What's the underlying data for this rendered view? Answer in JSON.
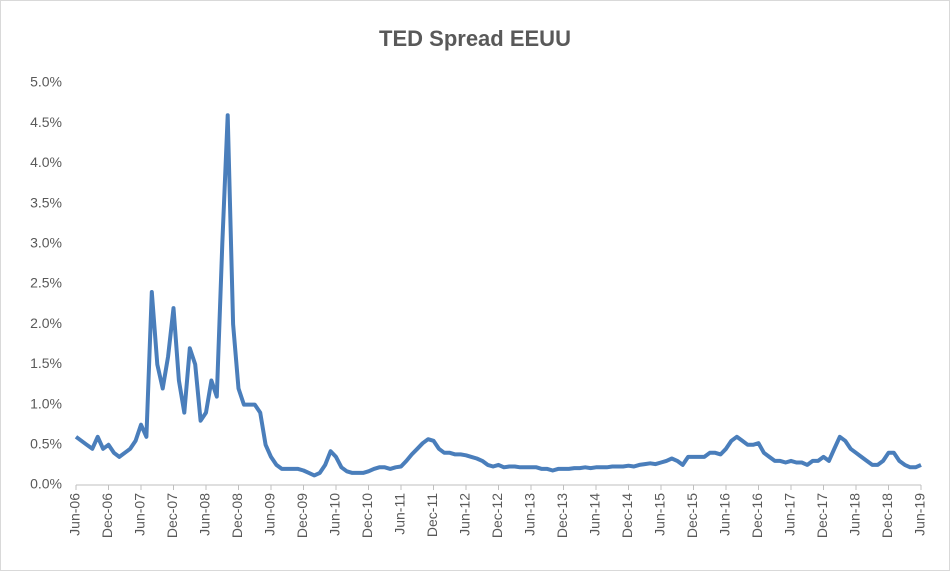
{
  "chart_data": {
    "type": "line",
    "title": "TED Spread EEUU",
    "x": [
      "Jun-06",
      "Jul-06",
      "Aug-06",
      "Sep-06",
      "Oct-06",
      "Nov-06",
      "Dec-06",
      "Jan-07",
      "Feb-07",
      "Mar-07",
      "Apr-07",
      "May-07",
      "Jun-07",
      "Jul-07",
      "Aug-07",
      "Sep-07",
      "Oct-07",
      "Nov-07",
      "Dec-07",
      "Jan-08",
      "Feb-08",
      "Mar-08",
      "Apr-08",
      "May-08",
      "Jun-08",
      "Jul-08",
      "Aug-08",
      "Sep-08",
      "Oct-08",
      "Nov-08",
      "Dec-08",
      "Jan-09",
      "Feb-09",
      "Mar-09",
      "Apr-09",
      "May-09",
      "Jun-09",
      "Jul-09",
      "Aug-09",
      "Sep-09",
      "Oct-09",
      "Nov-09",
      "Dec-09",
      "Jan-10",
      "Feb-10",
      "Mar-10",
      "Apr-10",
      "May-10",
      "Jun-10",
      "Jul-10",
      "Aug-10",
      "Sep-10",
      "Oct-10",
      "Nov-10",
      "Dec-10",
      "Jan-11",
      "Feb-11",
      "Mar-11",
      "Apr-11",
      "May-11",
      "Jun-11",
      "Jul-11",
      "Aug-11",
      "Sep-11",
      "Oct-11",
      "Nov-11",
      "Dec-11",
      "Jan-12",
      "Feb-12",
      "Mar-12",
      "Apr-12",
      "May-12",
      "Jun-12",
      "Jul-12",
      "Aug-12",
      "Sep-12",
      "Oct-12",
      "Nov-12",
      "Dec-12",
      "Jan-13",
      "Feb-13",
      "Mar-13",
      "Apr-13",
      "May-13",
      "Jun-13",
      "Jul-13",
      "Aug-13",
      "Sep-13",
      "Oct-13",
      "Nov-13",
      "Dec-13",
      "Jan-14",
      "Feb-14",
      "Mar-14",
      "Apr-14",
      "May-14",
      "Jun-14",
      "Jul-14",
      "Aug-14",
      "Sep-14",
      "Oct-14",
      "Nov-14",
      "Dec-14",
      "Jan-15",
      "Feb-15",
      "Mar-15",
      "Apr-15",
      "May-15",
      "Jun-15",
      "Jul-15",
      "Aug-15",
      "Sep-15",
      "Oct-15",
      "Nov-15",
      "Dec-15",
      "Jan-16",
      "Feb-16",
      "Mar-16",
      "Apr-16",
      "May-16",
      "Jun-16",
      "Jul-16",
      "Aug-16",
      "Sep-16",
      "Oct-16",
      "Nov-16",
      "Dec-16",
      "Jan-17",
      "Feb-17",
      "Mar-17",
      "Apr-17",
      "May-17",
      "Jun-17",
      "Jul-17",
      "Aug-17",
      "Sep-17",
      "Oct-17",
      "Nov-17",
      "Dec-17",
      "Jan-18",
      "Feb-18",
      "Mar-18",
      "Apr-18",
      "May-18",
      "Jun-18",
      "Jul-18",
      "Aug-18",
      "Sep-18",
      "Oct-18",
      "Nov-18",
      "Dec-18",
      "Jan-19",
      "Feb-19",
      "Mar-19",
      "Apr-19",
      "May-19",
      "Jun-19"
    ],
    "series": [
      {
        "name": "TED Spread",
        "color": "#4a7ebb",
        "values": [
          0.6,
          0.55,
          0.5,
          0.45,
          0.6,
          0.45,
          0.5,
          0.4,
          0.35,
          0.4,
          0.45,
          0.55,
          0.75,
          0.6,
          2.4,
          1.5,
          1.2,
          1.6,
          2.2,
          1.3,
          0.9,
          1.7,
          1.5,
          0.8,
          0.9,
          1.3,
          1.1,
          3.0,
          4.6,
          2.0,
          1.2,
          1.0,
          1.0,
          1.0,
          0.9,
          0.5,
          0.35,
          0.25,
          0.2,
          0.2,
          0.2,
          0.2,
          0.18,
          0.15,
          0.12,
          0.15,
          0.25,
          0.42,
          0.35,
          0.22,
          0.17,
          0.15,
          0.15,
          0.15,
          0.17,
          0.2,
          0.22,
          0.22,
          0.2,
          0.22,
          0.23,
          0.3,
          0.38,
          0.45,
          0.52,
          0.57,
          0.55,
          0.45,
          0.4,
          0.4,
          0.38,
          0.38,
          0.37,
          0.35,
          0.33,
          0.3,
          0.25,
          0.23,
          0.25,
          0.22,
          0.23,
          0.23,
          0.22,
          0.22,
          0.22,
          0.22,
          0.2,
          0.2,
          0.18,
          0.2,
          0.2,
          0.2,
          0.21,
          0.21,
          0.22,
          0.21,
          0.22,
          0.22,
          0.22,
          0.23,
          0.23,
          0.23,
          0.24,
          0.23,
          0.25,
          0.26,
          0.27,
          0.26,
          0.28,
          0.3,
          0.33,
          0.3,
          0.25,
          0.35,
          0.35,
          0.35,
          0.35,
          0.4,
          0.4,
          0.38,
          0.45,
          0.55,
          0.6,
          0.55,
          0.5,
          0.5,
          0.52,
          0.4,
          0.35,
          0.3,
          0.3,
          0.28,
          0.3,
          0.28,
          0.28,
          0.25,
          0.3,
          0.3,
          0.35,
          0.3,
          0.45,
          0.6,
          0.55,
          0.45,
          0.4,
          0.35,
          0.3,
          0.25,
          0.25,
          0.3,
          0.4,
          0.4,
          0.3,
          0.25,
          0.22,
          0.22,
          0.25
        ]
      }
    ],
    "xticks": [
      "Jun-06",
      "Dec-06",
      "Jun-07",
      "Dec-07",
      "Jun-08",
      "Dec-08",
      "Jun-09",
      "Dec-09",
      "Jun-10",
      "Dec-10",
      "Jun-11",
      "Dec-11",
      "Jun-12",
      "Dec-12",
      "Jun-13",
      "Dec-13",
      "Jun-14",
      "Dec-14",
      "Jun-15",
      "Dec-15",
      "Jun-16",
      "Dec-16",
      "Jun-17",
      "Dec-17",
      "Jun-18",
      "Dec-18",
      "Jun-19"
    ],
    "ylim": [
      0,
      5
    ],
    "yticks": [
      {
        "value": 0,
        "label": "0.0%"
      },
      {
        "value": 0.5,
        "label": "0.5%"
      },
      {
        "value": 1,
        "label": "1.0%"
      },
      {
        "value": 1.5,
        "label": "1.5%"
      },
      {
        "value": 2,
        "label": "2.0%"
      },
      {
        "value": 2.5,
        "label": "2.5%"
      },
      {
        "value": 3,
        "label": "3.0%"
      },
      {
        "value": 3.5,
        "label": "3.5%"
      },
      {
        "value": 4,
        "label": "4.0%"
      },
      {
        "value": 4.5,
        "label": "4.5%"
      },
      {
        "value": 5,
        "label": "5.0%"
      }
    ],
    "grid": false
  }
}
